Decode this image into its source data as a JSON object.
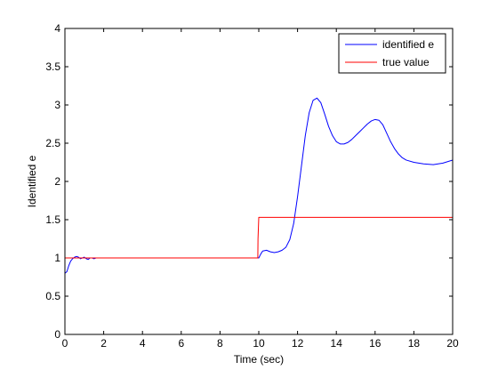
{
  "chart_data": {
    "type": "line",
    "title": "",
    "xlabel": "Time (sec)",
    "ylabel": "Identified e",
    "xlim": [
      0,
      20
    ],
    "ylim": [
      0,
      4
    ],
    "xticks": [
      0,
      2,
      4,
      6,
      8,
      10,
      12,
      14,
      16,
      18,
      20
    ],
    "yticks": [
      0,
      0.5,
      1,
      1.5,
      2,
      2.5,
      3,
      3.5,
      4
    ],
    "xtick_labels": [
      "0",
      "2",
      "4",
      "6",
      "8",
      "10",
      "12",
      "14",
      "16",
      "18",
      "20"
    ],
    "ytick_labels": [
      "0",
      "0.5",
      "1",
      "1.5",
      "2",
      "2.5",
      "3",
      "3.5",
      "4"
    ],
    "grid": false,
    "legend_position": "top-right",
    "series": [
      {
        "name": "identified e",
        "color": "#0000ff",
        "x": [
          0,
          0.1,
          0.2,
          0.3,
          0.4,
          0.5,
          0.6,
          0.7,
          0.8,
          0.9,
          1.0,
          1.1,
          1.2,
          1.3,
          1.4,
          1.5,
          1.6,
          2.0,
          4.0,
          6.0,
          8.0,
          9.95,
          10.0,
          10.1,
          10.2,
          10.4,
          10.6,
          10.8,
          11.0,
          11.2,
          11.4,
          11.6,
          11.8,
          12.0,
          12.2,
          12.4,
          12.6,
          12.8,
          13.0,
          13.2,
          13.4,
          13.6,
          13.8,
          14.0,
          14.2,
          14.4,
          14.6,
          14.8,
          15.0,
          15.2,
          15.4,
          15.6,
          15.8,
          16.0,
          16.2,
          16.4,
          16.6,
          16.8,
          17.0,
          17.2,
          17.4,
          17.6,
          18.0,
          18.5,
          19.0,
          19.5,
          20.0
        ],
        "y": [
          0.8,
          0.82,
          0.9,
          0.96,
          0.99,
          1.01,
          1.02,
          1.01,
          0.99,
          1.0,
          1.01,
          0.99,
          0.98,
          1.0,
          1.0,
          0.99,
          1.0,
          1.0,
          1.0,
          1.0,
          1.0,
          1.0,
          1.0,
          1.05,
          1.09,
          1.1,
          1.08,
          1.07,
          1.08,
          1.1,
          1.14,
          1.24,
          1.45,
          1.8,
          2.2,
          2.6,
          2.9,
          3.06,
          3.09,
          3.03,
          2.88,
          2.72,
          2.6,
          2.52,
          2.49,
          2.49,
          2.51,
          2.55,
          2.6,
          2.65,
          2.7,
          2.75,
          2.79,
          2.81,
          2.8,
          2.74,
          2.63,
          2.52,
          2.43,
          2.36,
          2.31,
          2.28,
          2.25,
          2.23,
          2.22,
          2.24,
          2.28
        ]
      },
      {
        "name": "true value",
        "color": "#ff0000",
        "x": [
          0,
          9.95,
          9.96,
          10.0,
          20.0
        ],
        "y": [
          1.0,
          1.0,
          1.25,
          1.53,
          1.53
        ]
      }
    ]
  }
}
